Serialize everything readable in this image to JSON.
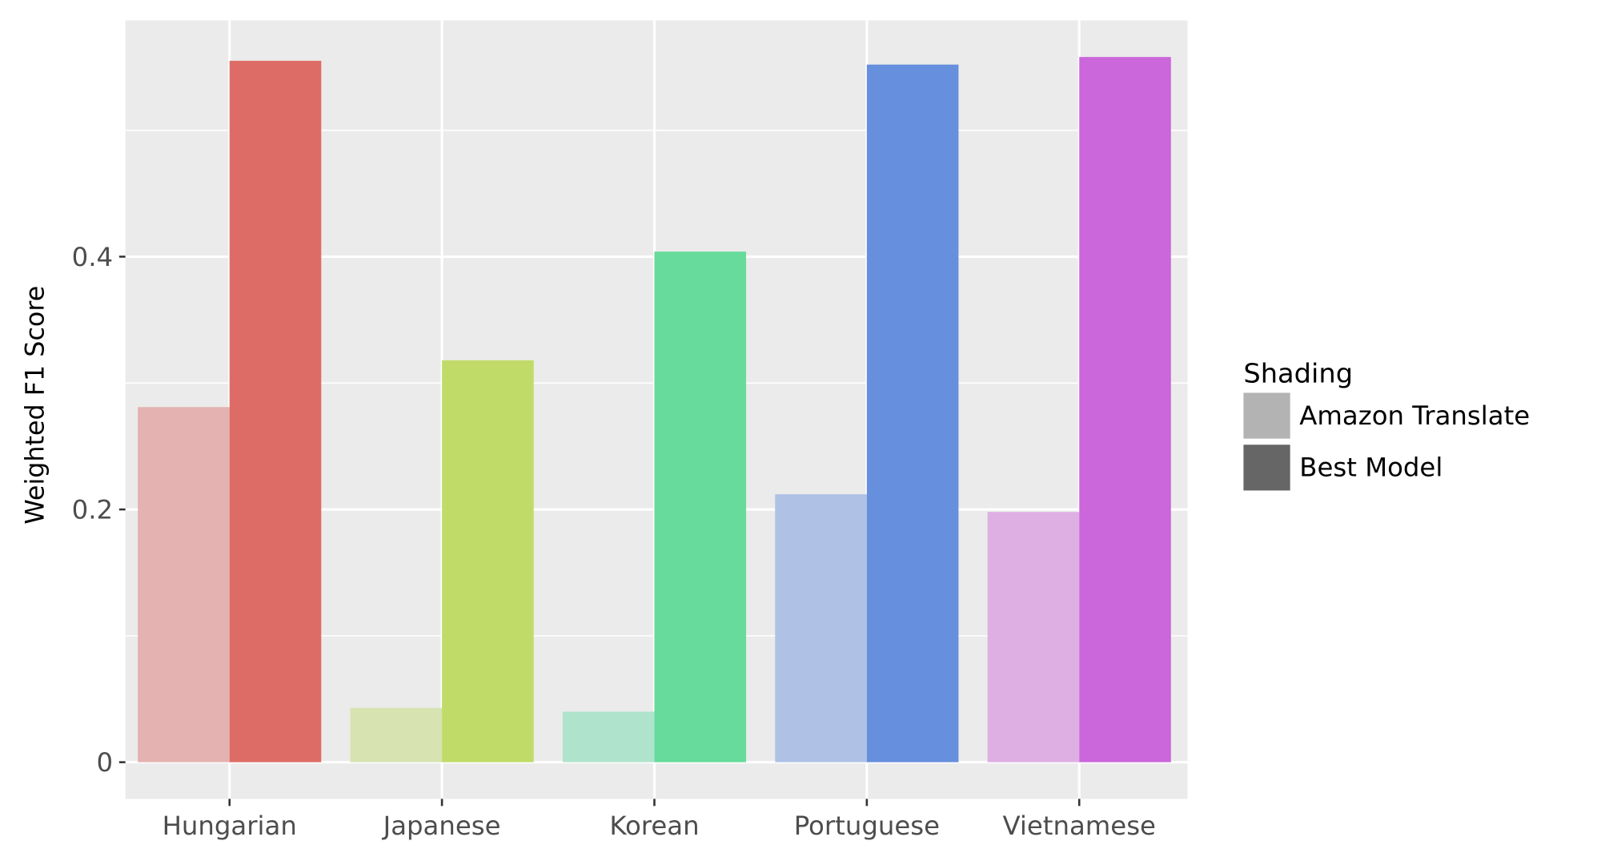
{
  "chart_data": {
    "type": "bar",
    "title": "",
    "xlabel": "",
    "ylabel": "Weighted F1 Score",
    "categories": [
      "Hungarian",
      "Japanese",
      "Korean",
      "Portuguese",
      "Vietnamese"
    ],
    "series": [
      {
        "name": "Amazon Translate",
        "values": [
          0.281,
          0.043,
          0.04,
          0.212,
          0.198
        ]
      },
      {
        "name": "Best Model",
        "values": [
          0.555,
          0.318,
          0.404,
          0.552,
          0.558
        ]
      }
    ],
    "bar_colors": {
      "Amazon Translate": [
        "#E4B2B0",
        "#D7E3B1",
        "#B0E3CC",
        "#AFC1E5",
        "#DEAFE3"
      ],
      "Best Model": [
        "#DE6C66",
        "#C1DB68",
        "#66DB9B",
        "#668FDD",
        "#CB66DB"
      ]
    },
    "ylim": [
      -0.029,
      0.587
    ],
    "yticks": [
      0,
      0.2,
      0.4
    ],
    "ytick_labels": [
      "0",
      "0.2",
      "0.4"
    ],
    "minor_yticks": [
      0.1,
      0.3,
      0.5
    ],
    "grid": true,
    "panel_background": "#EBEBEB",
    "legend": {
      "title": "Shading",
      "placement": "right",
      "entries": [
        {
          "label": "Amazon Translate",
          "color": "#B3B3B3"
        },
        {
          "label": "Best Model",
          "color": "#666666"
        }
      ]
    }
  }
}
